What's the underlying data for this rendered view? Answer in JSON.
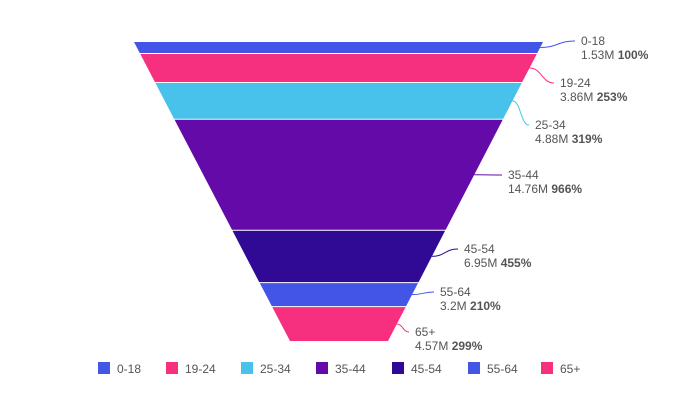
{
  "chart_data": {
    "type": "funnel",
    "title": "",
    "series": [
      {
        "name": "0-18",
        "value": 1.53,
        "value_label": "1.53M",
        "percent_label": "100%",
        "color": "#4355e6"
      },
      {
        "name": "19-24",
        "value": 3.86,
        "value_label": "3.86M",
        "percent_label": "253%",
        "color": "#f72f7f"
      },
      {
        "name": "25-34",
        "value": 4.88,
        "value_label": "4.88M",
        "percent_label": "319%",
        "color": "#48c2eb"
      },
      {
        "name": "35-44",
        "value": 14.76,
        "value_label": "14.76M",
        "percent_label": "966%",
        "color": "#640aa8"
      },
      {
        "name": "45-54",
        "value": 6.95,
        "value_label": "6.95M",
        "percent_label": "455%",
        "color": "#300a94"
      },
      {
        "name": "55-64",
        "value": 3.2,
        "value_label": "3.2M",
        "percent_label": "210%",
        "color": "#4355e6"
      },
      {
        "name": "65+",
        "value": 4.57,
        "value_label": "4.57M",
        "percent_label": "299%",
        "color": "#f72f7f"
      }
    ],
    "legend_position": "bottom"
  }
}
